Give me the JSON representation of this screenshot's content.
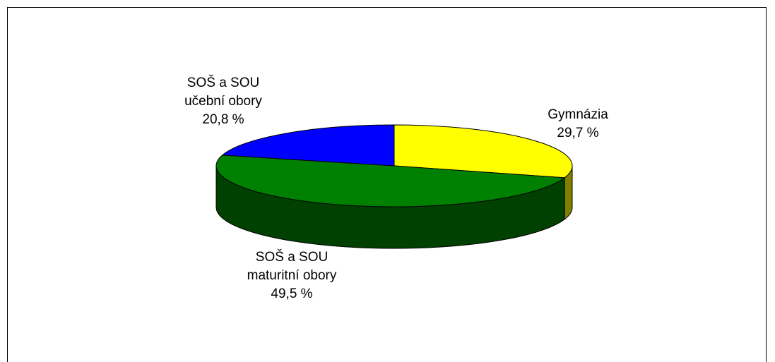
{
  "chart_data": {
    "type": "pie",
    "categories": [
      "Gymnázia",
      "SOŠ a SOU\nmaturitní obory",
      "SOŠ a SOU\nučební obory"
    ],
    "values": [
      29.7,
      49.5,
      20.8
    ],
    "value_labels": [
      "29,7 %",
      "49,5 %",
      "20,8 %"
    ],
    "colors": [
      "#ffff00",
      "#008000",
      "#0000ff"
    ],
    "side_colors": [
      "#808000",
      "#004000",
      "#000080"
    ]
  }
}
